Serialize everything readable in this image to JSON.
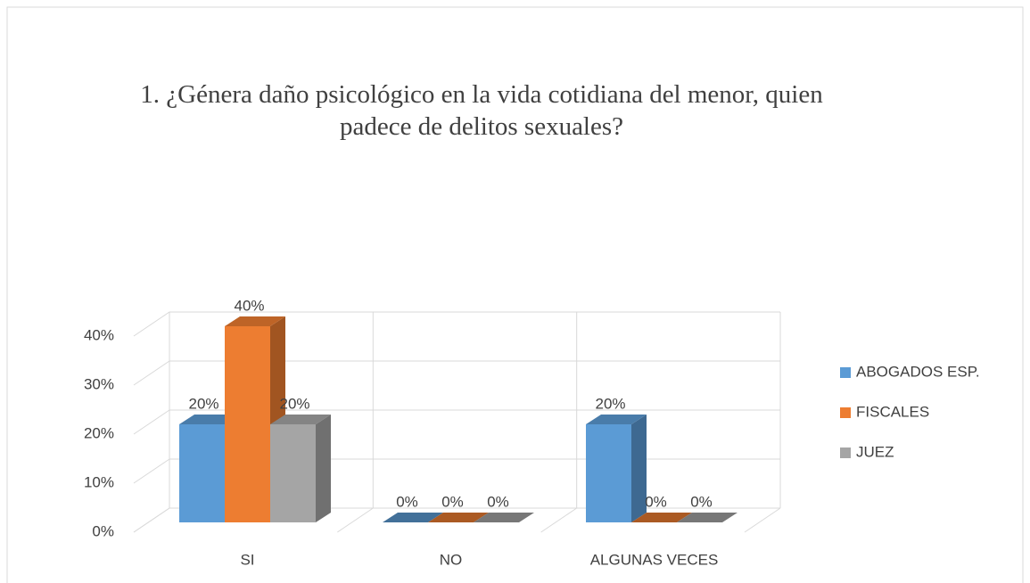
{
  "chart_data": {
    "type": "bar3d",
    "title": "1. ¿Génera daño psicológico en la vida cotidiana del menor, quien padece de delitos sexuales?",
    "categories": [
      "SI",
      "NO",
      "ALGUNAS VECES"
    ],
    "series": [
      {
        "name": "ABOGADOS ESP.",
        "color": "#5b9bd5",
        "values": [
          20,
          0,
          20
        ],
        "value_labels": [
          "20%",
          "0%",
          "20%"
        ]
      },
      {
        "name": "FISCALES",
        "color": "#ed7d31",
        "values": [
          40,
          0,
          0
        ],
        "value_labels": [
          "40%",
          "0%",
          "0%"
        ]
      },
      {
        "name": "JUEZ",
        "color": "#a5a5a5",
        "values": [
          20,
          0,
          0
        ],
        "value_labels": [
          "20%",
          "0%",
          "0%"
        ]
      }
    ],
    "ylim": [
      0,
      40
    ],
    "yticks": [
      {
        "value": 0,
        "label": "0%"
      },
      {
        "value": 10,
        "label": "10%"
      },
      {
        "value": 20,
        "label": "20%"
      },
      {
        "value": 30,
        "label": "30%"
      },
      {
        "value": 40,
        "label": "40%"
      }
    ],
    "grid": true,
    "legend": "right"
  }
}
